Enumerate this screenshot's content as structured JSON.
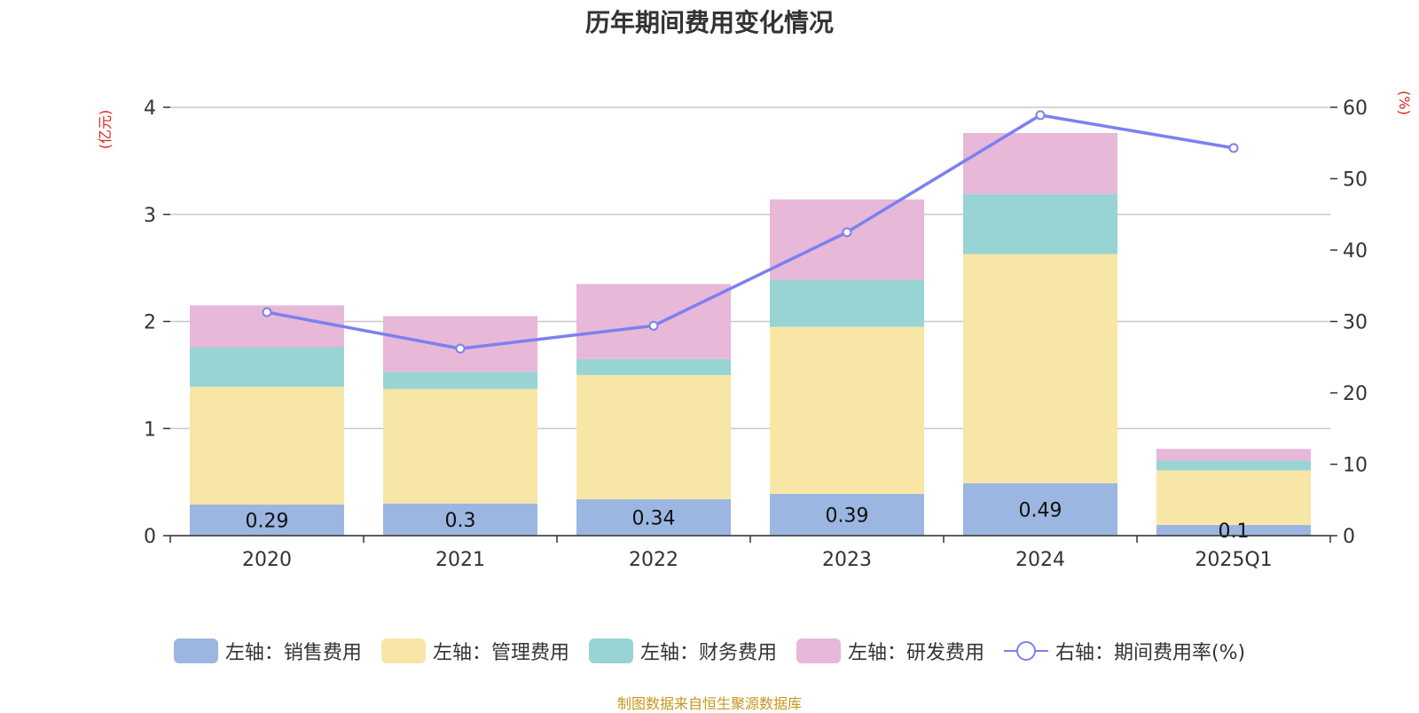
{
  "title": "历年期间费用变化情况",
  "source": "制图数据来自恒生聚源数据库",
  "colors": {
    "sales": "#9bb6e0",
    "admin": "#f7e6a6",
    "finance": "#98d4d3",
    "rd": "#e7b8d8",
    "line": "#7b80f0",
    "axis_unit": "#e02020",
    "grid": "#c8c8c8"
  },
  "legend": [
    {
      "label": "左轴：销售费用",
      "color": "#9bb6e0",
      "kind": "bar"
    },
    {
      "label": "左轴：管理费用",
      "color": "#f7e6a6",
      "kind": "bar"
    },
    {
      "label": "左轴：财务费用",
      "color": "#98d4d3",
      "kind": "bar"
    },
    {
      "label": "左轴：研发费用",
      "color": "#e7b8d8",
      "kind": "bar"
    },
    {
      "label": "右轴：期间费用率(%)",
      "color": "#7b80f0",
      "kind": "line"
    }
  ],
  "chart_data": {
    "type": "bar",
    "title": "历年期间费用变化情况",
    "categories": [
      "2020",
      "2021",
      "2022",
      "2023",
      "2024",
      "2025Q1"
    ],
    "left_axis": {
      "unit": "(亿元)",
      "ylim": [
        0,
        4
      ],
      "ticks": [
        "0",
        "1",
        "2",
        "3",
        "4"
      ]
    },
    "right_axis": {
      "unit": "(%)",
      "ylim": [
        0,
        60
      ],
      "ticks": [
        "0",
        "10",
        "20",
        "30",
        "40",
        "50",
        "60"
      ]
    },
    "grid": true,
    "legend_position": "bottom",
    "stacked": true,
    "series": [
      {
        "name": "左轴：销售费用",
        "axis": "left",
        "values": [
          0.29,
          0.3,
          0.34,
          0.39,
          0.49,
          0.1
        ],
        "labels": [
          "0.29",
          "0.3",
          "0.34",
          "0.39",
          "0.49",
          "0.1"
        ]
      },
      {
        "name": "左轴：管理费用",
        "axis": "left",
        "values": [
          1.1,
          1.07,
          1.16,
          1.56,
          2.14,
          0.51
        ]
      },
      {
        "name": "左轴：财务费用",
        "axis": "left",
        "values": [
          0.37,
          0.16,
          0.15,
          0.44,
          0.56,
          0.09
        ]
      },
      {
        "name": "左轴：研发费用",
        "axis": "left",
        "values": [
          0.39,
          0.52,
          0.7,
          0.75,
          0.57,
          0.11
        ]
      },
      {
        "name": "右轴：期间费用率(%)",
        "axis": "right",
        "type": "line",
        "values": [
          31.3,
          26.2,
          29.4,
          42.5,
          58.9,
          54.3
        ]
      }
    ]
  }
}
